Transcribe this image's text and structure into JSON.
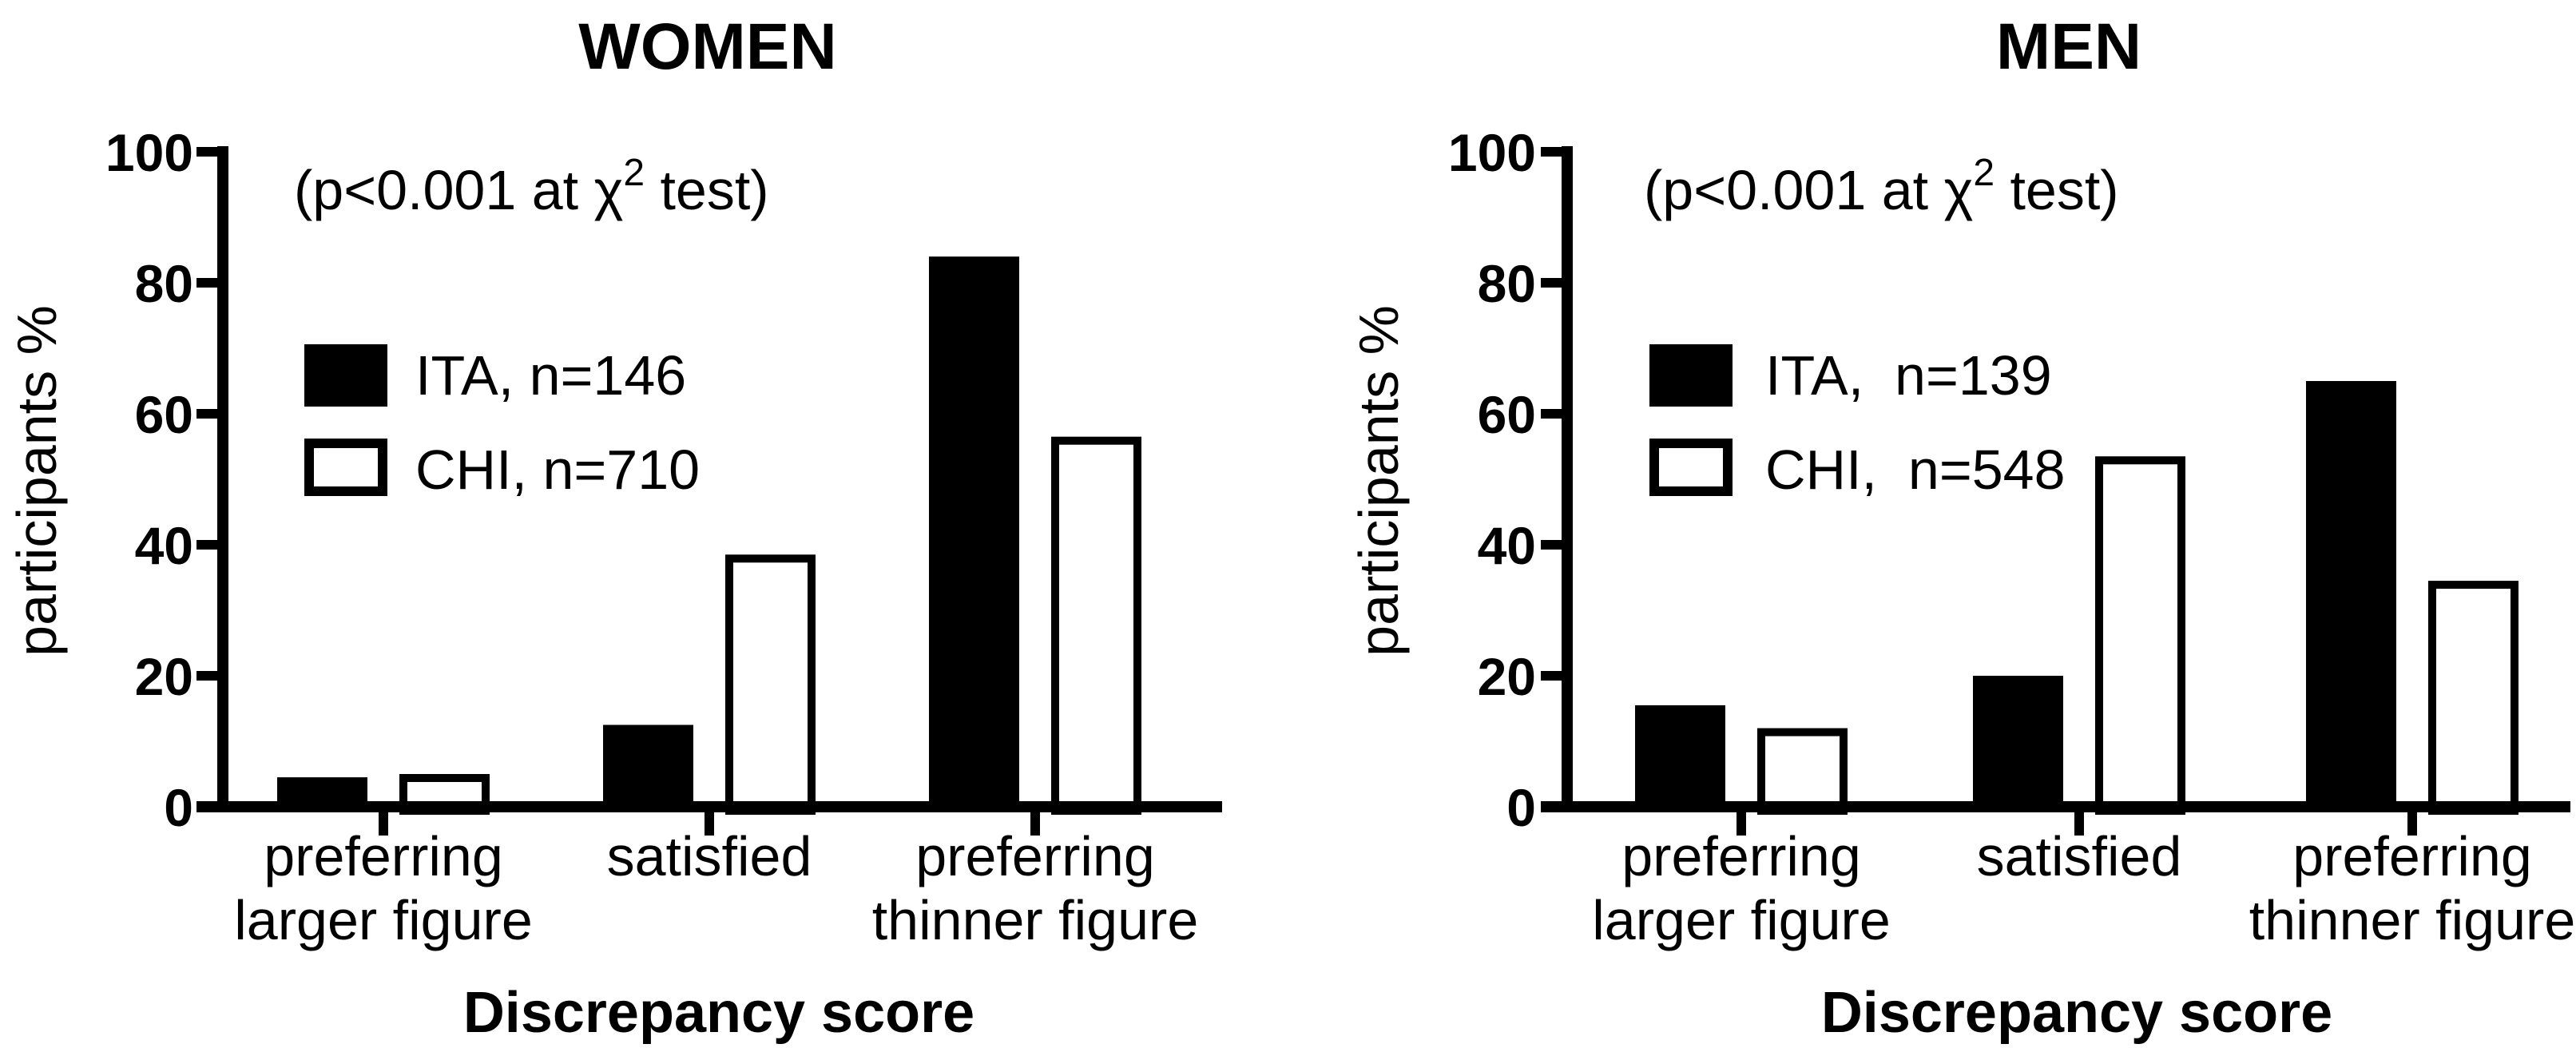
{
  "figure": {
    "background_color": "#ffffff",
    "ink_color": "#000000"
  },
  "chart_data": [
    {
      "panel": "women",
      "type": "bar",
      "title": "WOMEN",
      "annotation": {
        "pre": "(p<0.001 at χ",
        "sup": "2",
        "post": " test)"
      },
      "ylabel": "participants %",
      "xlabel": "Discrepancy score",
      "ylim": [
        0,
        100
      ],
      "yticks": [
        0,
        20,
        40,
        60,
        80,
        100
      ],
      "grid": false,
      "legend_position": "upper-left-inside",
      "categories": [
        [
          "preferring",
          "larger figure"
        ],
        [
          "satisfied"
        ],
        [
          "preferring",
          "thinner figure"
        ]
      ],
      "series": [
        {
          "name": "ITA, n=146",
          "fill": "#000000",
          "outline": "#000000",
          "values": [
            4.5,
            12.5,
            84.0
          ]
        },
        {
          "name": "CHI, n=710",
          "fill": "#ffffff",
          "outline": "#000000",
          "values": [
            5.0,
            38.5,
            56.5
          ]
        }
      ]
    },
    {
      "panel": "men",
      "type": "bar",
      "title": "MEN",
      "annotation": {
        "pre": "(p<0.001 at χ",
        "sup": "2",
        "post": " test)"
      },
      "ylabel": "participants %",
      "xlabel": "Discrepancy score",
      "ylim": [
        0,
        100
      ],
      "yticks": [
        0,
        20,
        40,
        60,
        80,
        100
      ],
      "grid": false,
      "legend_position": "upper-left-inside",
      "categories": [
        [
          "preferring",
          "larger figure"
        ],
        [
          "satisfied"
        ],
        [
          "preferring",
          "thinner figure"
        ]
      ],
      "series": [
        {
          "name": "ITA,  n=139",
          "fill": "#000000",
          "outline": "#000000",
          "values": [
            15.5,
            20.0,
            65.0
          ]
        },
        {
          "name": "CHI,  n=548",
          "fill": "#ffffff",
          "outline": "#000000",
          "values": [
            12.0,
            53.5,
            34.5
          ]
        }
      ]
    }
  ]
}
